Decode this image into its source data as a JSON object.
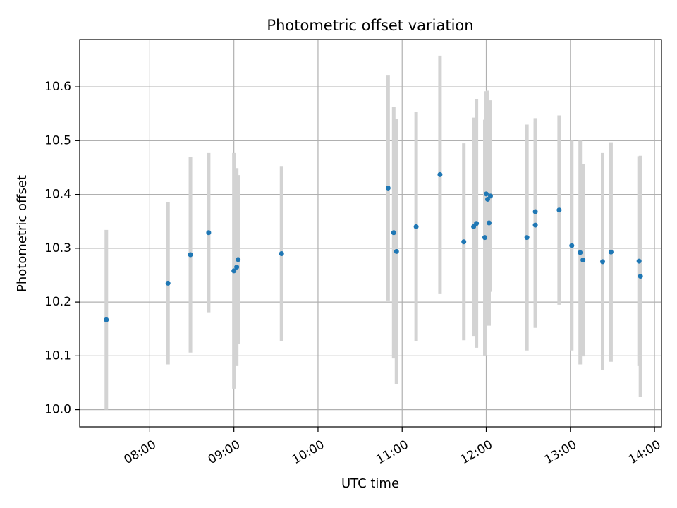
{
  "chart_data": {
    "type": "scatter",
    "title": "Photometric offset variation",
    "xlabel": "UTC time",
    "ylabel": "Photometric offset",
    "x_axis": {
      "kind": "time",
      "range": [
        "07:10",
        "14:05"
      ],
      "ticks": [
        "08:00",
        "09:00",
        "10:00",
        "11:00",
        "12:00",
        "13:00",
        "14:00"
      ]
    },
    "y_axis": {
      "range": [
        9.968,
        10.688
      ],
      "ticks": [
        10.0,
        10.1,
        10.2,
        10.3,
        10.4,
        10.5,
        10.6
      ],
      "tick_labels": [
        "10.0",
        "10.1",
        "10.2",
        "10.3",
        "10.4",
        "10.5",
        "10.6"
      ]
    },
    "grid": true,
    "marker_color": "#1f77b4",
    "errorbar_color": "#d3d3d3",
    "series": [
      {
        "points": [
          {
            "x": "07:29",
            "y": 10.167,
            "yerr": 0.167
          },
          {
            "x": "08:13",
            "y": 10.235,
            "yerr": 0.151
          },
          {
            "x": "08:29",
            "y": 10.288,
            "yerr": 0.182
          },
          {
            "x": "08:42",
            "y": 10.329,
            "yerr": 0.148
          },
          {
            "x": "09:00",
            "y": 10.258,
            "yerr": 0.219
          },
          {
            "x": "09:02",
            "y": 10.265,
            "yerr": 0.184
          },
          {
            "x": "09:03",
            "y": 10.279,
            "yerr": 0.157
          },
          {
            "x": "09:34",
            "y": 10.29,
            "yerr": 0.163
          },
          {
            "x": "10:50",
            "y": 10.412,
            "yerr": 0.209
          },
          {
            "x": "10:54",
            "y": 10.329,
            "yerr": 0.234
          },
          {
            "x": "10:56",
            "y": 10.294,
            "yerr": 0.246
          },
          {
            "x": "11:10",
            "y": 10.34,
            "yerr": 0.213
          },
          {
            "x": "11:27",
            "y": 10.437,
            "yerr": 0.221
          },
          {
            "x": "11:44",
            "y": 10.312,
            "yerr": 0.183
          },
          {
            "x": "11:51",
            "y": 10.34,
            "yerr": 0.203
          },
          {
            "x": "11:53",
            "y": 10.346,
            "yerr": 0.231
          },
          {
            "x": "11:59",
            "y": 10.32,
            "yerr": 0.219
          },
          {
            "x": "12:00",
            "y": 10.401,
            "yerr": 0.191
          },
          {
            "x": "12:01",
            "y": 10.391,
            "yerr": 0.202
          },
          {
            "x": "12:02",
            "y": 10.347,
            "yerr": 0.191
          },
          {
            "x": "12:03",
            "y": 10.397,
            "yerr": 0.178
          },
          {
            "x": "12:29",
            "y": 10.32,
            "yerr": 0.21
          },
          {
            "x": "12:35",
            "y": 10.368,
            "yerr": 0.174
          },
          {
            "x": "12:35",
            "y": 10.343,
            "yerr": 0.191
          },
          {
            "x": "12:52",
            "y": 10.371,
            "yerr": 0.176
          },
          {
            "x": "13:01",
            "y": 10.305,
            "yerr": 0.195
          },
          {
            "x": "13:07",
            "y": 10.292,
            "yerr": 0.208
          },
          {
            "x": "13:09",
            "y": 10.278,
            "yerr": 0.179
          },
          {
            "x": "13:23",
            "y": 10.275,
            "yerr": 0.202
          },
          {
            "x": "13:29",
            "y": 10.293,
            "yerr": 0.204
          },
          {
            "x": "13:49",
            "y": 10.276,
            "yerr": 0.195
          },
          {
            "x": "13:50",
            "y": 10.248,
            "yerr": 0.224
          }
        ]
      }
    ]
  }
}
